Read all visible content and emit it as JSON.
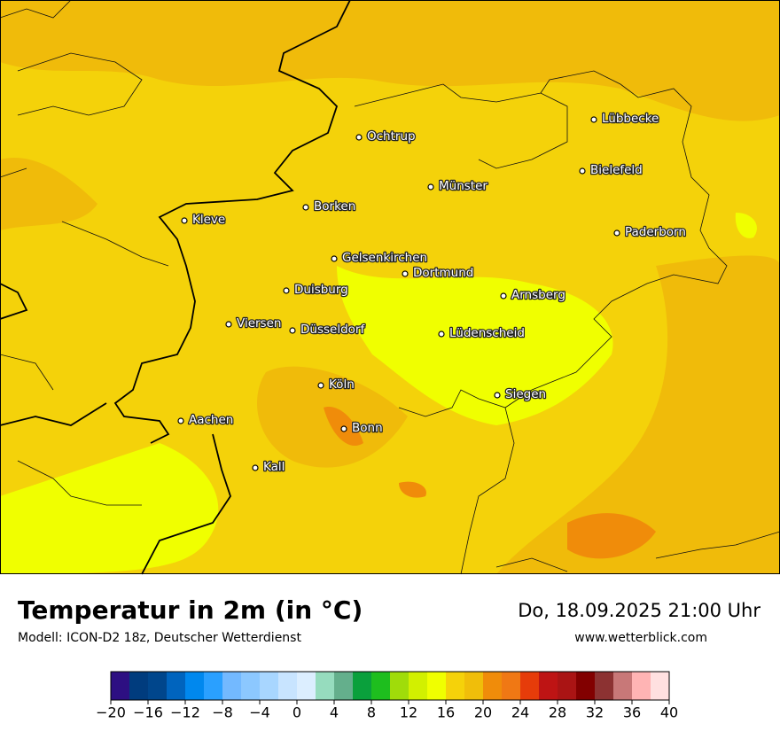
{
  "header": {
    "title": "Temperatur in 2m (in °C)",
    "model": "Modell: ICON-D2 18z, Deutscher Wetterdienst",
    "datetime": "Do, 18.09.2025 21:00 Uhr",
    "website": "www.wetterblick.com"
  },
  "map": {
    "cities": [
      "Lübbecke",
      "Ochtrup",
      "Bielefeld",
      "Münster",
      "Borken",
      "Kleve",
      "Paderborn",
      "Gelsenkirchen",
      "Dortmund",
      "Duisburg",
      "Arnsberg",
      "Viersen",
      "Düsseldorf",
      "Lüdenscheid",
      "Köln",
      "Siegen",
      "Aachen",
      "Bonn",
      "Kall"
    ]
  },
  "colorbar": {
    "bounds": [
      -20,
      -18,
      -16,
      -14,
      -12,
      -10,
      -8,
      -6,
      -4,
      -2,
      0,
      2,
      4,
      6,
      8,
      10,
      12,
      14,
      16,
      18,
      20,
      22,
      24,
      26,
      28,
      30,
      32,
      34,
      36,
      38,
      40
    ],
    "colors": [
      "#2d0f82",
      "#003c7e",
      "#00468c",
      "#0064be",
      "#0088ee",
      "#2aa0ff",
      "#73b9ff",
      "#8cc8ff",
      "#a8d6ff",
      "#c8e4ff",
      "#dceeff",
      "#96dcbe",
      "#64af8c",
      "#0aa03c",
      "#1ebe1e",
      "#a0dc0a",
      "#d2f000",
      "#f0ff00",
      "#f5d20a",
      "#f0be0a",
      "#f08c0a",
      "#f07814",
      "#e63c0a",
      "#be1414",
      "#aa1414",
      "#820000",
      "#8c3232",
      "#c87878",
      "#ffb4b4",
      "#ffe0e0"
    ],
    "ticks": [
      {
        "value": -20,
        "label": "−20"
      },
      {
        "value": -16,
        "label": "−16"
      },
      {
        "value": -12,
        "label": "−12"
      },
      {
        "value": -8,
        "label": "−8"
      },
      {
        "value": -4,
        "label": "−4"
      },
      0,
      4,
      8,
      12,
      16,
      20,
      24,
      28,
      32,
      36,
      40
    ]
  }
}
